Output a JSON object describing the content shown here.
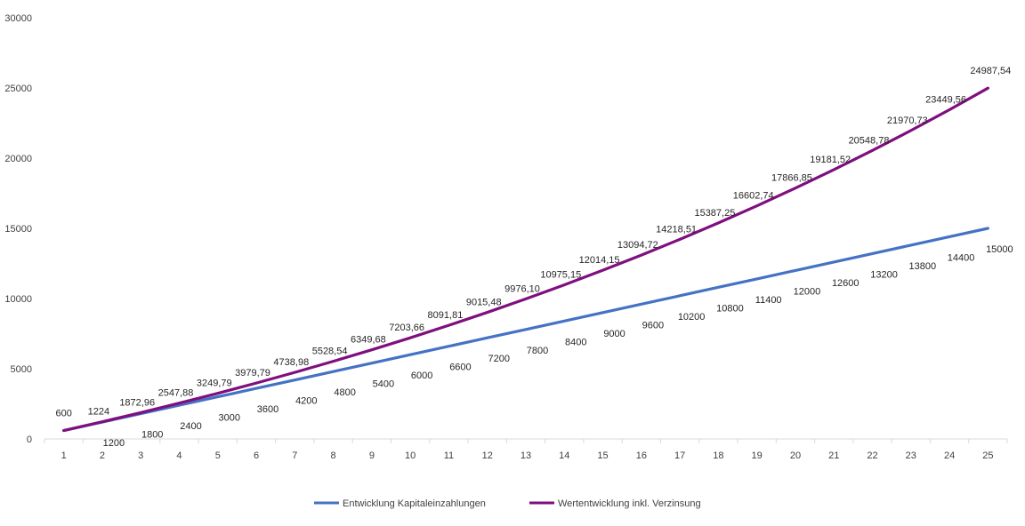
{
  "chart_data": {
    "type": "line",
    "title": "",
    "xlabel": "",
    "ylabel": "",
    "categories": [
      "1",
      "2",
      "3",
      "4",
      "5",
      "6",
      "7",
      "8",
      "9",
      "10",
      "11",
      "12",
      "13",
      "14",
      "15",
      "16",
      "17",
      "18",
      "19",
      "20",
      "21",
      "22",
      "23",
      "24",
      "25"
    ],
    "ylim": [
      0,
      30000
    ],
    "yticks": [
      0,
      5000,
      10000,
      15000,
      20000,
      25000,
      30000
    ],
    "grid": false,
    "legend_position": "bottom",
    "series": [
      {
        "name": "Entwicklung Kapitaleinzahlungen",
        "color": "#4472C4",
        "values": [
          600,
          1200,
          1800,
          2400,
          3000,
          3600,
          4200,
          4800,
          5400,
          6000,
          6600,
          7200,
          7800,
          8400,
          9000,
          9600,
          10200,
          10800,
          11400,
          12000,
          12600,
          13200,
          13800,
          14400,
          15000
        ],
        "labels": [
          "600",
          "1200",
          "1800",
          "2400",
          "3000",
          "3600",
          "4200",
          "4800",
          "5400",
          "6000",
          "6600",
          "7200",
          "7800",
          "8400",
          "9000",
          "9600",
          "10200",
          "10800",
          "11400",
          "12000",
          "12600",
          "13200",
          "13800",
          "14400",
          "15000"
        ]
      },
      {
        "name": "Wertentwicklung inkl. Verzinsung",
        "color": "#7F0F7E",
        "values": [
          600,
          1224,
          1872.96,
          2547.88,
          3249.79,
          3979.79,
          4738.98,
          5528.54,
          6349.68,
          7203.66,
          8091.81,
          9015.48,
          9976.1,
          10975.15,
          12014.15,
          13094.72,
          14218.51,
          15387.25,
          16602.74,
          17866.85,
          19181.52,
          20548.78,
          21970.73,
          23449.56,
          24987.54
        ],
        "labels": [
          "",
          "1224",
          "1872,96",
          "2547,88",
          "3249,79",
          "3979,79",
          "4738,98",
          "5528,54",
          "6349,68",
          "7203,66",
          "8091,81",
          "9015,48",
          "9976,10",
          "10975,15",
          "12014,15",
          "13094,72",
          "14218,51",
          "15387,25",
          "16602,74",
          "17866,85",
          "19181,52",
          "20548,78",
          "21970,73",
          "23449,56",
          "24987,54"
        ]
      }
    ]
  }
}
